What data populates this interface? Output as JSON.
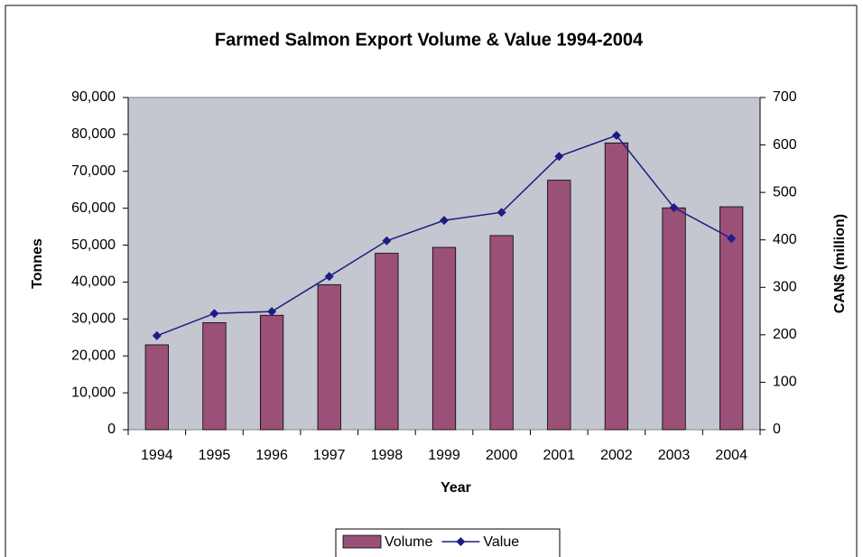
{
  "chart_data": {
    "type": "bar",
    "title": "Farmed Salmon Export Volume & Value 1994-2004",
    "x_label": "Year",
    "y_label": "Tonnes",
    "y2_label": "CAN$ (million)",
    "categories": [
      "1994",
      "1995",
      "1996",
      "1997",
      "1998",
      "1999",
      "2000",
      "2001",
      "2002",
      "2003",
      "2004"
    ],
    "series": [
      {
        "name": "Volume",
        "type": "bar",
        "color": "#9b5078",
        "values": [
          23000,
          29000,
          31000,
          39300,
          47800,
          49400,
          52600,
          67600,
          77700,
          60100,
          60400
        ]
      },
      {
        "name": "Value",
        "type": "line",
        "axis": "y2",
        "color": "#1c1c86",
        "values": [
          198,
          245,
          249,
          323,
          398,
          441,
          458,
          576,
          620,
          468,
          403
        ]
      }
    ],
    "ylim": [
      0,
      90000
    ],
    "yticks": [
      0,
      {
        "value": 10000,
        "label": "10,000"
      },
      {
        "value": 20000,
        "label": "20,000"
      },
      {
        "value": 30000,
        "label": "30,000"
      },
      {
        "value": 40000,
        "label": "40,000"
      },
      {
        "value": 50000,
        "label": "50,000"
      },
      {
        "value": 60000,
        "label": "60,000"
      },
      {
        "value": 70000,
        "label": "70,000"
      },
      {
        "value": 80000,
        "label": "80,000"
      },
      {
        "value": 90000,
        "label": "90,000"
      }
    ],
    "y2lim": [
      0,
      700
    ],
    "y2ticks": [
      0,
      100,
      200,
      300,
      400,
      500,
      600,
      700
    ],
    "plot_background": "#c4c7cf",
    "legend": "bottom"
  }
}
